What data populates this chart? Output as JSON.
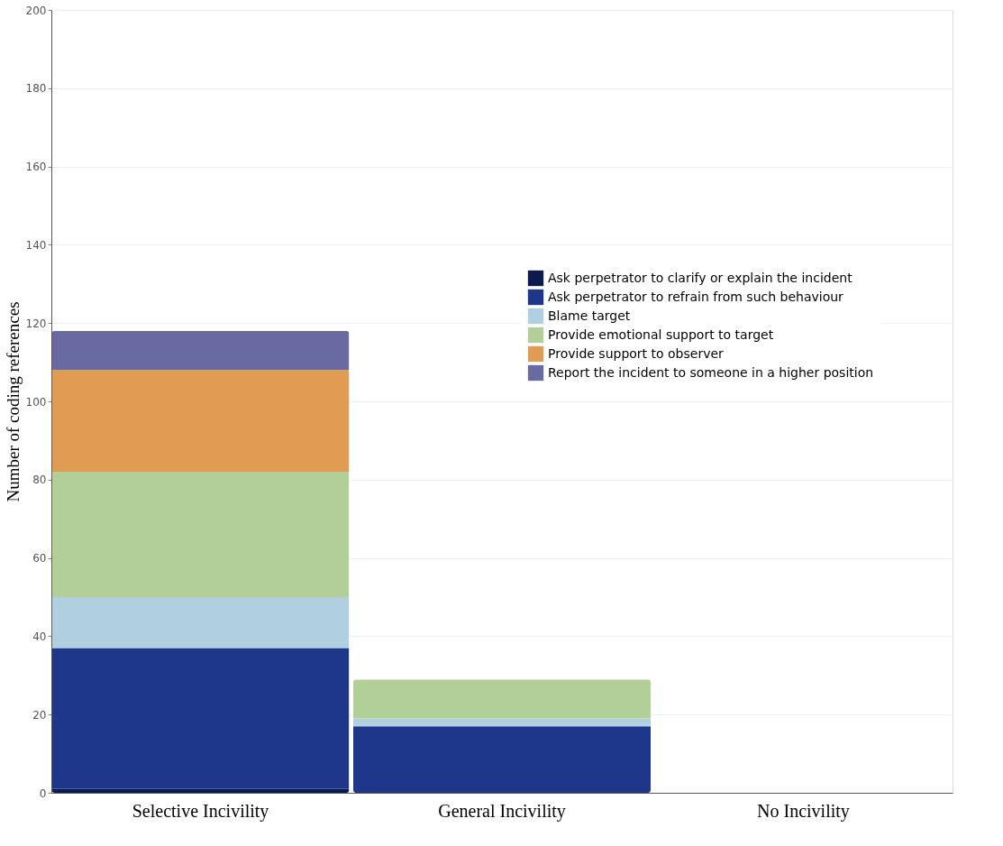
{
  "chart_data": {
    "type": "bar",
    "stacked": true,
    "ylabel": "Number of coding references",
    "categories": [
      "Selective Incivility",
      "General Incivility",
      "No Incivility"
    ],
    "series": [
      {
        "name": "Ask perpetrator to clarify or explain the incident",
        "color": "#0b1a4f",
        "values": [
          1,
          0,
          0
        ]
      },
      {
        "name": "Ask perpetrator to refrain from such behaviour",
        "color": "#1f378b",
        "values": [
          36,
          17,
          0
        ]
      },
      {
        "name": "Blame target",
        "color": "#b0d0e0",
        "values": [
          13,
          2,
          0
        ]
      },
      {
        "name": "Provide emotional support to target",
        "color": "#b3cf98",
        "values": [
          32,
          10,
          0
        ]
      },
      {
        "name": "Provide support to observer",
        "color": "#df9c52",
        "values": [
          26,
          0,
          0
        ]
      },
      {
        "name": "Report the incident to someone in a higher position",
        "color": "#6a6aa3",
        "values": [
          10,
          0,
          0
        ]
      }
    ],
    "ylim": [
      0,
      200
    ],
    "yticks": [
      0,
      20,
      40,
      60,
      80,
      100,
      120,
      140,
      160,
      180,
      200
    ],
    "grid": "y",
    "legend": "right"
  }
}
